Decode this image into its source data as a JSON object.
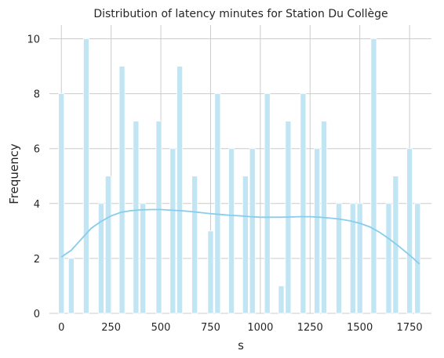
{
  "chart_data": {
    "type": "bar",
    "title": "Distribution of latency minutes for Station Du Collège",
    "xlabel": "s",
    "ylabel": "Frequency",
    "xlim": [
      -60,
      1860
    ],
    "ylim": [
      0,
      10.5
    ],
    "xticks": [
      0,
      250,
      500,
      750,
      1000,
      1250,
      1500,
      1750
    ],
    "yticks": [
      0,
      2,
      4,
      6,
      8,
      10
    ],
    "grid": true,
    "bar_color": "#c1e5f3",
    "kde_color": "#87ceeb",
    "bins": [
      {
        "x": 0,
        "count": 8
      },
      {
        "x": 50,
        "count": 2
      },
      {
        "x": 125,
        "count": 10
      },
      {
        "x": 200,
        "count": 4
      },
      {
        "x": 235,
        "count": 5
      },
      {
        "x": 305,
        "count": 9
      },
      {
        "x": 375,
        "count": 7
      },
      {
        "x": 410,
        "count": 4
      },
      {
        "x": 490,
        "count": 7
      },
      {
        "x": 560,
        "count": 6
      },
      {
        "x": 595,
        "count": 9
      },
      {
        "x": 670,
        "count": 5
      },
      {
        "x": 750,
        "count": 3
      },
      {
        "x": 785,
        "count": 8
      },
      {
        "x": 855,
        "count": 6
      },
      {
        "x": 925,
        "count": 5
      },
      {
        "x": 960,
        "count": 6
      },
      {
        "x": 1035,
        "count": 8
      },
      {
        "x": 1105,
        "count": 1
      },
      {
        "x": 1140,
        "count": 7
      },
      {
        "x": 1215,
        "count": 8
      },
      {
        "x": 1285,
        "count": 6
      },
      {
        "x": 1320,
        "count": 7
      },
      {
        "x": 1395,
        "count": 4
      },
      {
        "x": 1465,
        "count": 4
      },
      {
        "x": 1500,
        "count": 4
      },
      {
        "x": 1570,
        "count": 10
      },
      {
        "x": 1645,
        "count": 4
      },
      {
        "x": 1680,
        "count": 5
      },
      {
        "x": 1750,
        "count": 6
      },
      {
        "x": 1790,
        "count": 4
      }
    ],
    "bin_width": 28,
    "kde": {
      "x": [
        0,
        50,
        100,
        150,
        200,
        250,
        300,
        350,
        400,
        450,
        500,
        550,
        600,
        650,
        700,
        750,
        800,
        850,
        900,
        950,
        1000,
        1050,
        1100,
        1150,
        1200,
        1250,
        1300,
        1350,
        1400,
        1450,
        1500,
        1550,
        1600,
        1650,
        1700,
        1750,
        1800
      ],
      "y": [
        2.05,
        2.3,
        2.7,
        3.1,
        3.35,
        3.55,
        3.68,
        3.74,
        3.77,
        3.78,
        3.78,
        3.76,
        3.74,
        3.71,
        3.67,
        3.63,
        3.6,
        3.57,
        3.55,
        3.52,
        3.5,
        3.5,
        3.5,
        3.51,
        3.52,
        3.52,
        3.5,
        3.47,
        3.43,
        3.37,
        3.28,
        3.15,
        2.95,
        2.7,
        2.42,
        2.12,
        1.8
      ]
    }
  }
}
